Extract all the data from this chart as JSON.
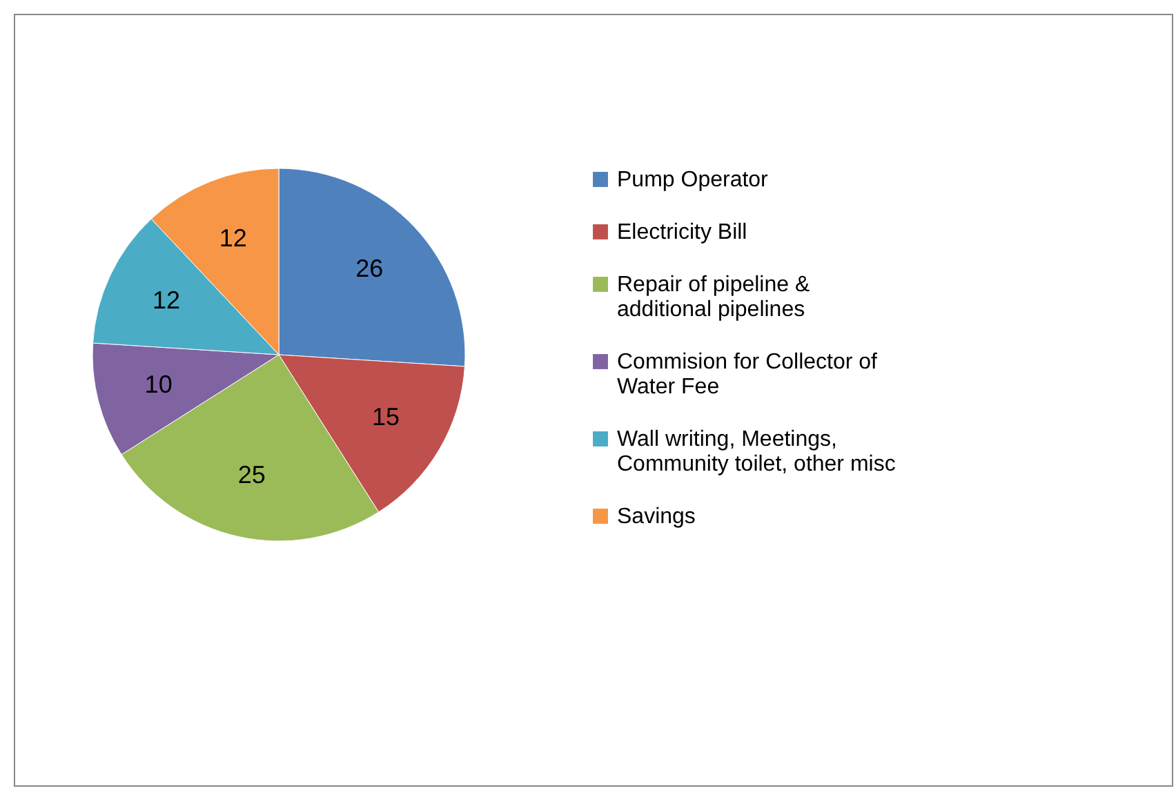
{
  "chart_data": {
    "type": "pie",
    "categories": [
      "Pump Operator",
      "Electricity Bill",
      "Repair of pipeline & additional pipelines",
      "Commision for Collector of Water Fee",
      "Wall writing, Meetings, Community toilet, other misc",
      "Savings"
    ],
    "values": [
      26,
      15,
      25,
      10,
      12,
      12
    ],
    "colors": [
      "#4f81bd",
      "#c0504d",
      "#9bbb59",
      "#8064a2",
      "#4bacc6",
      "#f79646"
    ],
    "data_labels": true,
    "legend": "right"
  }
}
